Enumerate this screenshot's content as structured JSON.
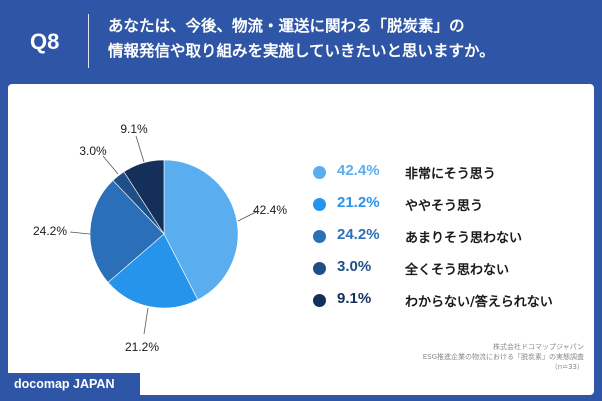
{
  "header": {
    "question_number": "Q8",
    "title_line1": "あなたは、今後、物流・運送に関わる「脱炭素」の",
    "title_line2": "情報発信や取り組みを実施していきたいと思いますか。"
  },
  "source": {
    "line1": "株式会社ドコマップジャパン",
    "line2": "ESG推進企業の物流における「脱炭素」の実態調査",
    "line3": "（n=33）"
  },
  "brand": "docomap JAPAN",
  "chart_data": {
    "type": "pie",
    "categories": [
      "非常にそう思う",
      "ややそう思う",
      "あまりそう思わない",
      "全くそう思わない",
      "わからない/答えられない"
    ],
    "values": [
      42.4,
      21.2,
      24.2,
      3.0,
      9.1
    ],
    "value_labels": [
      "42.4%",
      "21.2%",
      "24.2%",
      "3.0%",
      "9.1%"
    ],
    "colors": [
      "#5aaef0",
      "#2794ec",
      "#2a6fb8",
      "#1f4f86",
      "#142f5a"
    ],
    "legend_placement": "right"
  }
}
